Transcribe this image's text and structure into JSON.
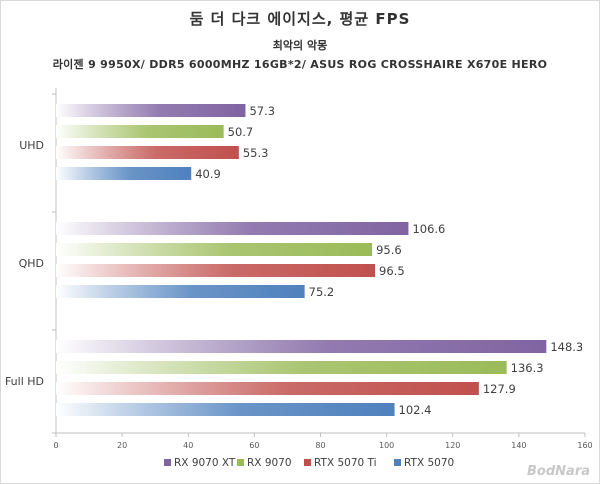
{
  "chart_data": {
    "type": "bar",
    "orientation": "horizontal",
    "title": "둠 더 다크 에이지스, 평균 FPS",
    "subtitle": "최악의 악몽",
    "subtitle2": "라이젠 9 9950X/ DDR5 6000MHZ 16GB*2/ ASUS ROG CROSSHAIRE X670E HERO",
    "categories": [
      "UHD",
      "QHD",
      "Full HD"
    ],
    "series": [
      {
        "name": "RX 9070 XT",
        "color": "#8064a2",
        "values": [
          57.3,
          106.6,
          148.3
        ]
      },
      {
        "name": "RX 9070",
        "color": "#9bbb59",
        "values": [
          50.7,
          95.6,
          136.3
        ]
      },
      {
        "name": "RTX 5070 Ti",
        "color": "#c0504d",
        "values": [
          55.3,
          96.5,
          127.9
        ]
      },
      {
        "name": "RTX 5070",
        "color": "#4f81bd",
        "values": [
          40.9,
          75.2,
          102.4
        ]
      }
    ],
    "xlim": [
      0,
      160
    ],
    "xticks": [
      "0",
      "20",
      "40",
      "60",
      "80",
      "100",
      "120",
      "140",
      "160"
    ],
    "grid": false,
    "legend_position": "bottom"
  },
  "watermark": "BodNara"
}
